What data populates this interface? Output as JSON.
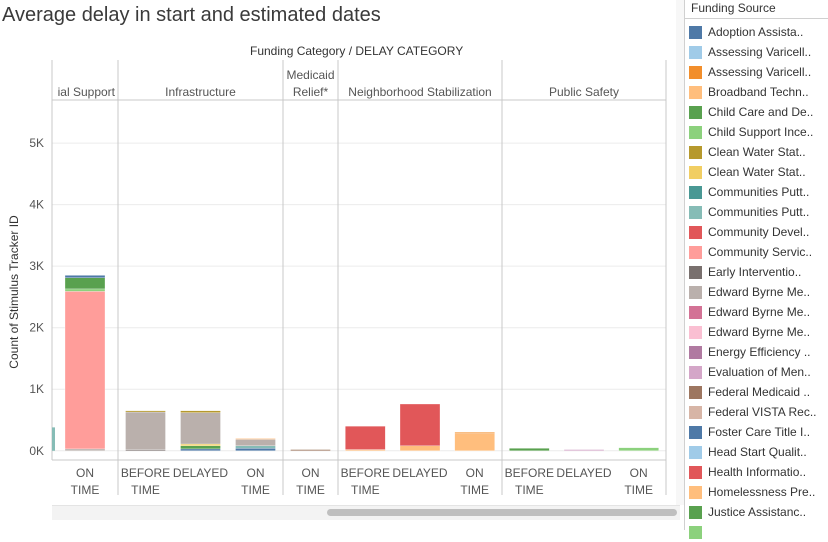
{
  "title": "Average delay in start and estimated dates",
  "facet_header": "Funding Category  /  DELAY CATEGORY",
  "legend_title": "Funding Source",
  "legend": [
    {
      "label": "Adoption Assista..",
      "color": "#4e79a7"
    },
    {
      "label": "Assessing Varicell..",
      "color": "#a0cbe8"
    },
    {
      "label": "Assessing Varicell..",
      "color": "#f28e2b"
    },
    {
      "label": "Broadband Techn..",
      "color": "#ffbe7d"
    },
    {
      "label": "Child Care and De..",
      "color": "#59a14f"
    },
    {
      "label": "Child Support Ince..",
      "color": "#8cd17d"
    },
    {
      "label": "Clean Water Stat..",
      "color": "#b6992d"
    },
    {
      "label": "Clean Water Stat..",
      "color": "#f1ce63"
    },
    {
      "label": "Communities Putt..",
      "color": "#499894"
    },
    {
      "label": "Communities Putt..",
      "color": "#86bcb6"
    },
    {
      "label": "Community Devel..",
      "color": "#e15759"
    },
    {
      "label": "Community Servic..",
      "color": "#ff9d9a"
    },
    {
      "label": "Early Interventio..",
      "color": "#79706e"
    },
    {
      "label": "Edward Byrne Me..",
      "color": "#bab0ac"
    },
    {
      "label": "Edward Byrne Me..",
      "color": "#d37295"
    },
    {
      "label": "Edward Byrne Me..",
      "color": "#fabfd2"
    },
    {
      "label": "Energy Efficiency ..",
      "color": "#b07aa1"
    },
    {
      "label": "Evaluation of Men..",
      "color": "#d4a6c8"
    },
    {
      "label": "Federal Medicaid ..",
      "color": "#9d7660"
    },
    {
      "label": "Federal VISTA Rec..",
      "color": "#d7b5a6"
    },
    {
      "label": "Foster Care Title I..",
      "color": "#4e79a7"
    },
    {
      "label": "Head Start Qualit..",
      "color": "#a0cbe8"
    },
    {
      "label": "Health Informatio..",
      "color": "#e15759"
    },
    {
      "label": "Homelessness Pre..",
      "color": "#ffbe7d"
    },
    {
      "label": "Justice Assistanc..",
      "color": "#59a14f"
    },
    {
      "label": "",
      "color": "#8cd17d"
    }
  ],
  "chart_data": {
    "type": "bar",
    "stacked": true,
    "ylabel": "Count of Stimulus Tracker ID",
    "yticks": [
      "0K",
      "1K",
      "2K",
      "3K",
      "4K",
      "5K"
    ],
    "ylim": [
      -150,
      5700
    ],
    "panels": [
      {
        "label": "ial Support",
        "groups": [
          {
            "label": "ON TIME",
            "segments": [
              {
                "color": "#bab0ac",
                "value": 30
              },
              {
                "color": "#ff9d9a",
                "value": 2560
              },
              {
                "color": "#8cd17d",
                "value": 40
              },
              {
                "color": "#59a14f",
                "value": 180
              },
              {
                "color": "#4e79a7",
                "value": 40
              }
            ]
          }
        ]
      },
      {
        "label": "Infrastructure",
        "groups": [
          {
            "label": "BEFORE TIME",
            "segments": [
              {
                "color": "#79706e",
                "value": 20
              },
              {
                "color": "#bab0ac",
                "value": 610
              },
              {
                "color": "#b6992d",
                "value": 20
              }
            ]
          },
          {
            "label": "DELAYED",
            "segments": [
              {
                "color": "#4e79a7",
                "value": 30
              },
              {
                "color": "#59a14f",
                "value": 50
              },
              {
                "color": "#f1ce63",
                "value": 30
              },
              {
                "color": "#bab0ac",
                "value": 510
              },
              {
                "color": "#b6992d",
                "value": 30
              }
            ]
          },
          {
            "label": "ON TIME",
            "segments": [
              {
                "color": "#4e79a7",
                "value": 40
              },
              {
                "color": "#86bcb6",
                "value": 40
              },
              {
                "color": "#bab0ac",
                "value": 110
              },
              {
                "color": "#ffbe7d",
                "value": 10
              }
            ]
          }
        ]
      },
      {
        "label": "Medicaid Relief*",
        "groups": [
          {
            "label": "ON TIME",
            "segments": [
              {
                "color": "#9d7660",
                "value": 20
              }
            ]
          }
        ]
      },
      {
        "label": "Neighborhood Stabilization",
        "groups": [
          {
            "label": "BEFORE TIME",
            "segments": [
              {
                "color": "#ffbe7d",
                "value": 20
              },
              {
                "color": "#e15759",
                "value": 380
              }
            ]
          },
          {
            "label": "DELAYED",
            "segments": [
              {
                "color": "#ffbe7d",
                "value": 80
              },
              {
                "color": "#e15759",
                "value": 680
              }
            ]
          },
          {
            "label": "ON TIME",
            "segments": [
              {
                "color": "#ffbe7d",
                "value": 280
              },
              {
                "color": "#f28e2b",
                "value": 20
              }
            ]
          }
        ]
      },
      {
        "label": "Public Safety",
        "groups": [
          {
            "label": "BEFORE TIME",
            "segments": [
              {
                "color": "#59a14f",
                "value": 40
              }
            ]
          },
          {
            "label": "DELAYED",
            "segments": [
              {
                "color": "#d4a6c8",
                "value": 20
              }
            ]
          },
          {
            "label": "ON TIME",
            "segments": [
              {
                "color": "#8cd17d",
                "value": 50
              }
            ]
          }
        ]
      }
    ]
  }
}
